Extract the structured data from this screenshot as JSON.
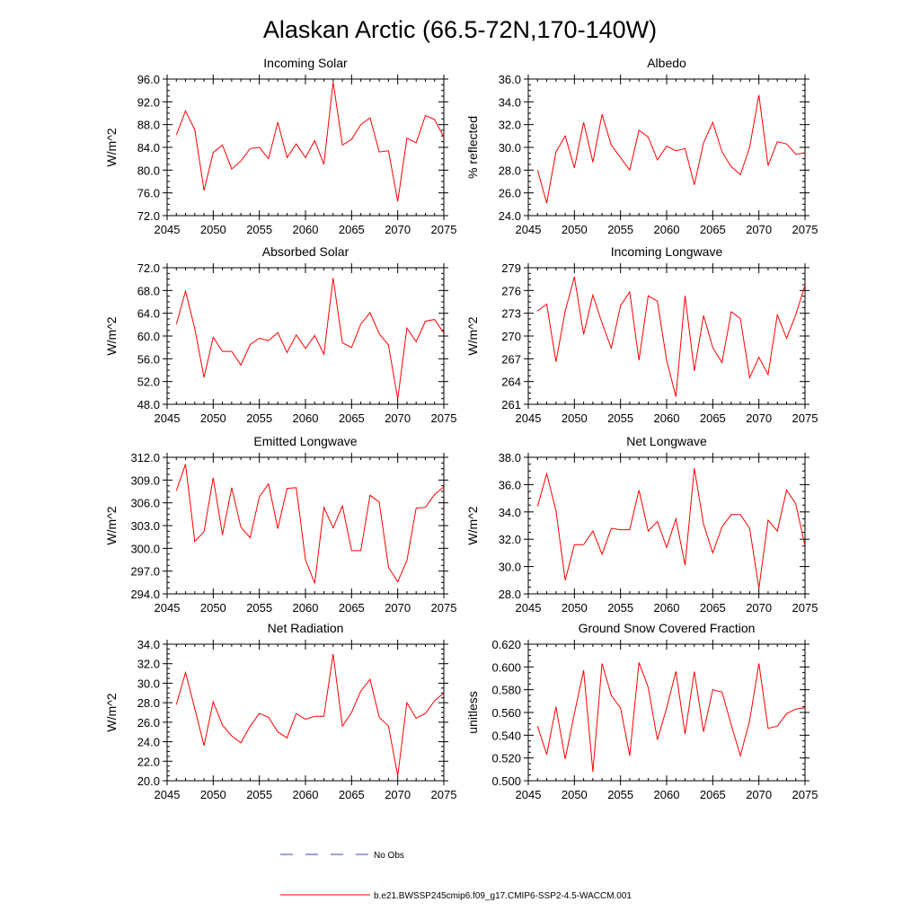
{
  "figure": {
    "title": "Alaskan Arctic (66.5-72N,170-140W)"
  },
  "legend": {
    "no_obs_label": "No Obs",
    "no_obs_color": "#4040c0",
    "run_label": "b.e21.BWSSP245cmip6.f09_g17.CMIP6-SSP2-4.5-WACCM.001",
    "run_color": "#ff0000"
  },
  "chart_data": [
    {
      "type": "line",
      "title": "Incoming Solar",
      "xlabel": "",
      "ylabel": "W/m^2",
      "xlim": [
        2045,
        2075
      ],
      "ylim": [
        72.0,
        96.0
      ],
      "xticks": [
        2045,
        2050,
        2055,
        2060,
        2065,
        2070,
        2075
      ],
      "yticks": [
        "72.0",
        "76.0",
        "80.0",
        "84.0",
        "88.0",
        "92.0",
        "96.0"
      ],
      "ytick_values": [
        72,
        76,
        80,
        84,
        88,
        92,
        96
      ],
      "x": [
        2046,
        2047,
        2048,
        2049,
        2050,
        2051,
        2052,
        2053,
        2054,
        2055,
        2056,
        2057,
        2058,
        2059,
        2060,
        2061,
        2062,
        2063,
        2064,
        2065,
        2066,
        2067,
        2068,
        2069,
        2070,
        2071,
        2072,
        2073,
        2074,
        2075
      ],
      "series": [
        {
          "name": "b.e21.BWSSP245cmip6.f09_g17.CMIP6-SSP2-4.5-WACCM.001",
          "values": [
            86.2,
            90.4,
            87.1,
            76.4,
            83.1,
            84.4,
            80.2,
            81.6,
            83.8,
            84.0,
            82.0,
            88.4,
            82.2,
            84.6,
            82.2,
            85.2,
            81.0,
            95.5,
            84.4,
            85.4,
            88.0,
            89.2,
            83.2,
            83.4,
            74.5,
            85.6,
            84.8,
            89.6,
            88.9,
            85.8
          ]
        }
      ]
    },
    {
      "type": "line",
      "title": "Albedo",
      "xlabel": "",
      "ylabel": "% reflected",
      "xlim": [
        2045,
        2075
      ],
      "ylim": [
        24.0,
        36.0
      ],
      "xticks": [
        2045,
        2050,
        2055,
        2060,
        2065,
        2070,
        2075
      ],
      "yticks": [
        "24.0",
        "26.0",
        "28.0",
        "30.0",
        "32.0",
        "34.0",
        "36.0"
      ],
      "ytick_values": [
        24,
        26,
        28,
        30,
        32,
        34,
        36
      ],
      "x": [
        2046,
        2047,
        2048,
        2049,
        2050,
        2051,
        2052,
        2053,
        2054,
        2055,
        2056,
        2057,
        2058,
        2059,
        2060,
        2061,
        2062,
        2063,
        2064,
        2065,
        2066,
        2067,
        2068,
        2069,
        2070,
        2071,
        2072,
        2073,
        2074,
        2075
      ],
      "series": [
        {
          "name": "b.e21.BWSSP245cmip6.f09_g17.CMIP6-SSP2-4.5-WACCM.001",
          "values": [
            28.0,
            25.1,
            29.6,
            31.0,
            28.2,
            32.2,
            28.7,
            32.9,
            30.2,
            29.1,
            28.0,
            31.5,
            30.9,
            28.9,
            30.1,
            29.7,
            29.9,
            26.7,
            30.4,
            32.2,
            29.6,
            28.3,
            27.6,
            30.0,
            34.6,
            28.4,
            30.5,
            30.3,
            29.4,
            29.5
          ]
        }
      ]
    },
    {
      "type": "line",
      "title": "Absorbed Solar",
      "xlabel": "",
      "ylabel": "W/m^2",
      "xlim": [
        2045,
        2075
      ],
      "ylim": [
        48.0,
        72.0
      ],
      "xticks": [
        2045,
        2050,
        2055,
        2060,
        2065,
        2070,
        2075
      ],
      "yticks": [
        "48.0",
        "52.0",
        "56.0",
        "60.0",
        "64.0",
        "68.0",
        "72.0"
      ],
      "ytick_values": [
        48,
        52,
        56,
        60,
        64,
        68,
        72
      ],
      "x": [
        2046,
        2047,
        2048,
        2049,
        2050,
        2051,
        2052,
        2053,
        2054,
        2055,
        2056,
        2057,
        2058,
        2059,
        2060,
        2061,
        2062,
        2063,
        2064,
        2065,
        2066,
        2067,
        2068,
        2069,
        2070,
        2071,
        2072,
        2073,
        2074,
        2075
      ],
      "series": [
        {
          "name": "b.e21.BWSSP245cmip6.f09_g17.CMIP6-SSP2-4.5-WACCM.001",
          "values": [
            62.1,
            67.9,
            61.3,
            52.7,
            59.8,
            57.3,
            57.3,
            54.9,
            58.5,
            59.6,
            59.2,
            60.6,
            57.1,
            60.2,
            57.8,
            60.1,
            56.8,
            70.2,
            58.8,
            58.0,
            62.1,
            64.1,
            60.4,
            58.4,
            48.9,
            61.4,
            59.0,
            62.6,
            62.9,
            60.5
          ]
        }
      ]
    },
    {
      "type": "line",
      "title": "Incoming Longwave",
      "xlabel": "",
      "ylabel": "W/m^2",
      "xlim": [
        2045,
        2075
      ],
      "ylim": [
        261,
        279
      ],
      "xticks": [
        2045,
        2050,
        2055,
        2060,
        2065,
        2070,
        2075
      ],
      "yticks": [
        "261",
        "264",
        "267",
        "270",
        "273",
        "276",
        "279"
      ],
      "ytick_values": [
        261,
        264,
        267,
        270,
        273,
        276,
        279
      ],
      "x": [
        2046,
        2047,
        2048,
        2049,
        2050,
        2051,
        2052,
        2053,
        2054,
        2055,
        2056,
        2057,
        2058,
        2059,
        2060,
        2061,
        2062,
        2063,
        2064,
        2065,
        2066,
        2067,
        2068,
        2069,
        2070,
        2071,
        2072,
        2073,
        2074,
        2075
      ],
      "series": [
        {
          "name": "b.e21.BWSSP245cmip6.f09_g17.CMIP6-SSP2-4.5-WACCM.001",
          "values": [
            273.3,
            274.2,
            266.6,
            273.3,
            277.8,
            270.2,
            275.4,
            271.7,
            268.4,
            274.0,
            275.8,
            266.8,
            275.3,
            274.6,
            266.8,
            262.0,
            275.3,
            265.4,
            272.7,
            268.5,
            266.5,
            273.2,
            272.3,
            264.5,
            267.2,
            264.9,
            272.8,
            269.7,
            272.8,
            276.7
          ]
        }
      ]
    },
    {
      "type": "line",
      "title": "Emitted Longwave",
      "xlabel": "",
      "ylabel": "W/m^2",
      "xlim": [
        2045,
        2075
      ],
      "ylim": [
        294.0,
        312.0
      ],
      "xticks": [
        2045,
        2050,
        2055,
        2060,
        2065,
        2070,
        2075
      ],
      "yticks": [
        "294.0",
        "297.0",
        "300.0",
        "303.0",
        "306.0",
        "309.0",
        "312.0"
      ],
      "ytick_values": [
        294,
        297,
        300,
        303,
        306,
        309,
        312
      ],
      "x": [
        2046,
        2047,
        2048,
        2049,
        2050,
        2051,
        2052,
        2053,
        2054,
        2055,
        2056,
        2057,
        2058,
        2059,
        2060,
        2061,
        2062,
        2063,
        2064,
        2065,
        2066,
        2067,
        2068,
        2069,
        2070,
        2071,
        2072,
        2073,
        2074,
        2075
      ],
      "series": [
        {
          "name": "b.e21.BWSSP245cmip6.f09_g17.CMIP6-SSP2-4.5-WACCM.001",
          "values": [
            307.6,
            311.1,
            300.9,
            302.2,
            309.3,
            301.8,
            308.0,
            302.8,
            301.4,
            306.8,
            308.5,
            302.6,
            307.9,
            308.0,
            298.5,
            295.4,
            305.4,
            302.7,
            305.6,
            299.7,
            299.7,
            307.0,
            306.1,
            297.5,
            295.6,
            298.4,
            305.3,
            305.4,
            307.1,
            308.1
          ]
        }
      ]
    },
    {
      "type": "line",
      "title": "Net Longwave",
      "xlabel": "",
      "ylabel": "W/m^2",
      "xlim": [
        2045,
        2075
      ],
      "ylim": [
        28.0,
        38.0
      ],
      "xticks": [
        2045,
        2050,
        2055,
        2060,
        2065,
        2070,
        2075
      ],
      "yticks": [
        "28.0",
        "30.0",
        "32.0",
        "34.0",
        "36.0",
        "38.0"
      ],
      "ytick_values": [
        28,
        30,
        32,
        34,
        36,
        38
      ],
      "x": [
        2046,
        2047,
        2048,
        2049,
        2050,
        2051,
        2052,
        2053,
        2054,
        2055,
        2056,
        2057,
        2058,
        2059,
        2060,
        2061,
        2062,
        2063,
        2064,
        2065,
        2066,
        2067,
        2068,
        2069,
        2070,
        2071,
        2072,
        2073,
        2074,
        2075
      ],
      "series": [
        {
          "name": "b.e21.BWSSP245cmip6.f09_g17.CMIP6-SSP2-4.5-WACCM.001",
          "values": [
            34.4,
            36.8,
            34.1,
            29.0,
            31.6,
            31.6,
            32.6,
            30.9,
            32.8,
            32.7,
            32.7,
            35.6,
            32.6,
            33.3,
            31.4,
            33.5,
            30.1,
            37.2,
            33.1,
            31.0,
            32.9,
            33.8,
            33.8,
            32.8,
            28.4,
            33.4,
            32.6,
            35.6,
            34.6,
            31.5
          ]
        }
      ]
    },
    {
      "type": "line",
      "title": "Net Radiation",
      "xlabel": "",
      "ylabel": "W/m^2",
      "xlim": [
        2045,
        2075
      ],
      "ylim": [
        20.0,
        34.0
      ],
      "xticks": [
        2045,
        2050,
        2055,
        2060,
        2065,
        2070,
        2075
      ],
      "yticks": [
        "20.0",
        "22.0",
        "24.0",
        "26.0",
        "28.0",
        "30.0",
        "32.0",
        "34.0"
      ],
      "ytick_values": [
        20,
        22,
        24,
        26,
        28,
        30,
        32,
        34
      ],
      "x": [
        2046,
        2047,
        2048,
        2049,
        2050,
        2051,
        2052,
        2053,
        2054,
        2055,
        2056,
        2057,
        2058,
        2059,
        2060,
        2061,
        2062,
        2063,
        2064,
        2065,
        2066,
        2067,
        2068,
        2069,
        2070,
        2071,
        2072,
        2073,
        2074,
        2075
      ],
      "series": [
        {
          "name": "b.e21.BWSSP245cmip6.f09_g17.CMIP6-SSP2-4.5-WACCM.001",
          "values": [
            27.8,
            31.1,
            27.4,
            23.6,
            28.1,
            25.7,
            24.6,
            23.9,
            25.6,
            26.9,
            26.5,
            25.0,
            24.4,
            26.9,
            26.3,
            26.6,
            26.6,
            33.0,
            25.6,
            27.0,
            29.2,
            30.4,
            26.5,
            25.6,
            20.5,
            28.0,
            26.4,
            26.9,
            28.2,
            29.0
          ]
        }
      ]
    },
    {
      "type": "line",
      "title": "Ground Snow Covered Fraction",
      "xlabel": "",
      "ylabel": "unitless",
      "xlim": [
        2045,
        2075
      ],
      "ylim": [
        0.5,
        0.62
      ],
      "xticks": [
        2045,
        2050,
        2055,
        2060,
        2065,
        2070,
        2075
      ],
      "yticks": [
        "0.500",
        "0.520",
        "0.540",
        "0.560",
        "0.580",
        "0.600",
        "0.620"
      ],
      "ytick_values": [
        0.5,
        0.52,
        0.54,
        0.56,
        0.58,
        0.6,
        0.62
      ],
      "x": [
        2046,
        2047,
        2048,
        2049,
        2050,
        2051,
        2052,
        2053,
        2054,
        2055,
        2056,
        2057,
        2058,
        2059,
        2060,
        2061,
        2062,
        2063,
        2064,
        2065,
        2066,
        2067,
        2068,
        2069,
        2070,
        2071,
        2072,
        2073,
        2074,
        2075
      ],
      "series": [
        {
          "name": "b.e21.BWSSP245cmip6.f09_g17.CMIP6-SSP2-4.5-WACCM.001",
          "values": [
            0.548,
            0.523,
            0.565,
            0.519,
            0.559,
            0.597,
            0.508,
            0.603,
            0.575,
            0.564,
            0.522,
            0.604,
            0.582,
            0.536,
            0.564,
            0.596,
            0.541,
            0.596,
            0.543,
            0.58,
            0.578,
            0.549,
            0.522,
            0.553,
            0.603,
            0.546,
            0.548,
            0.559,
            0.563,
            0.564
          ]
        }
      ]
    }
  ]
}
